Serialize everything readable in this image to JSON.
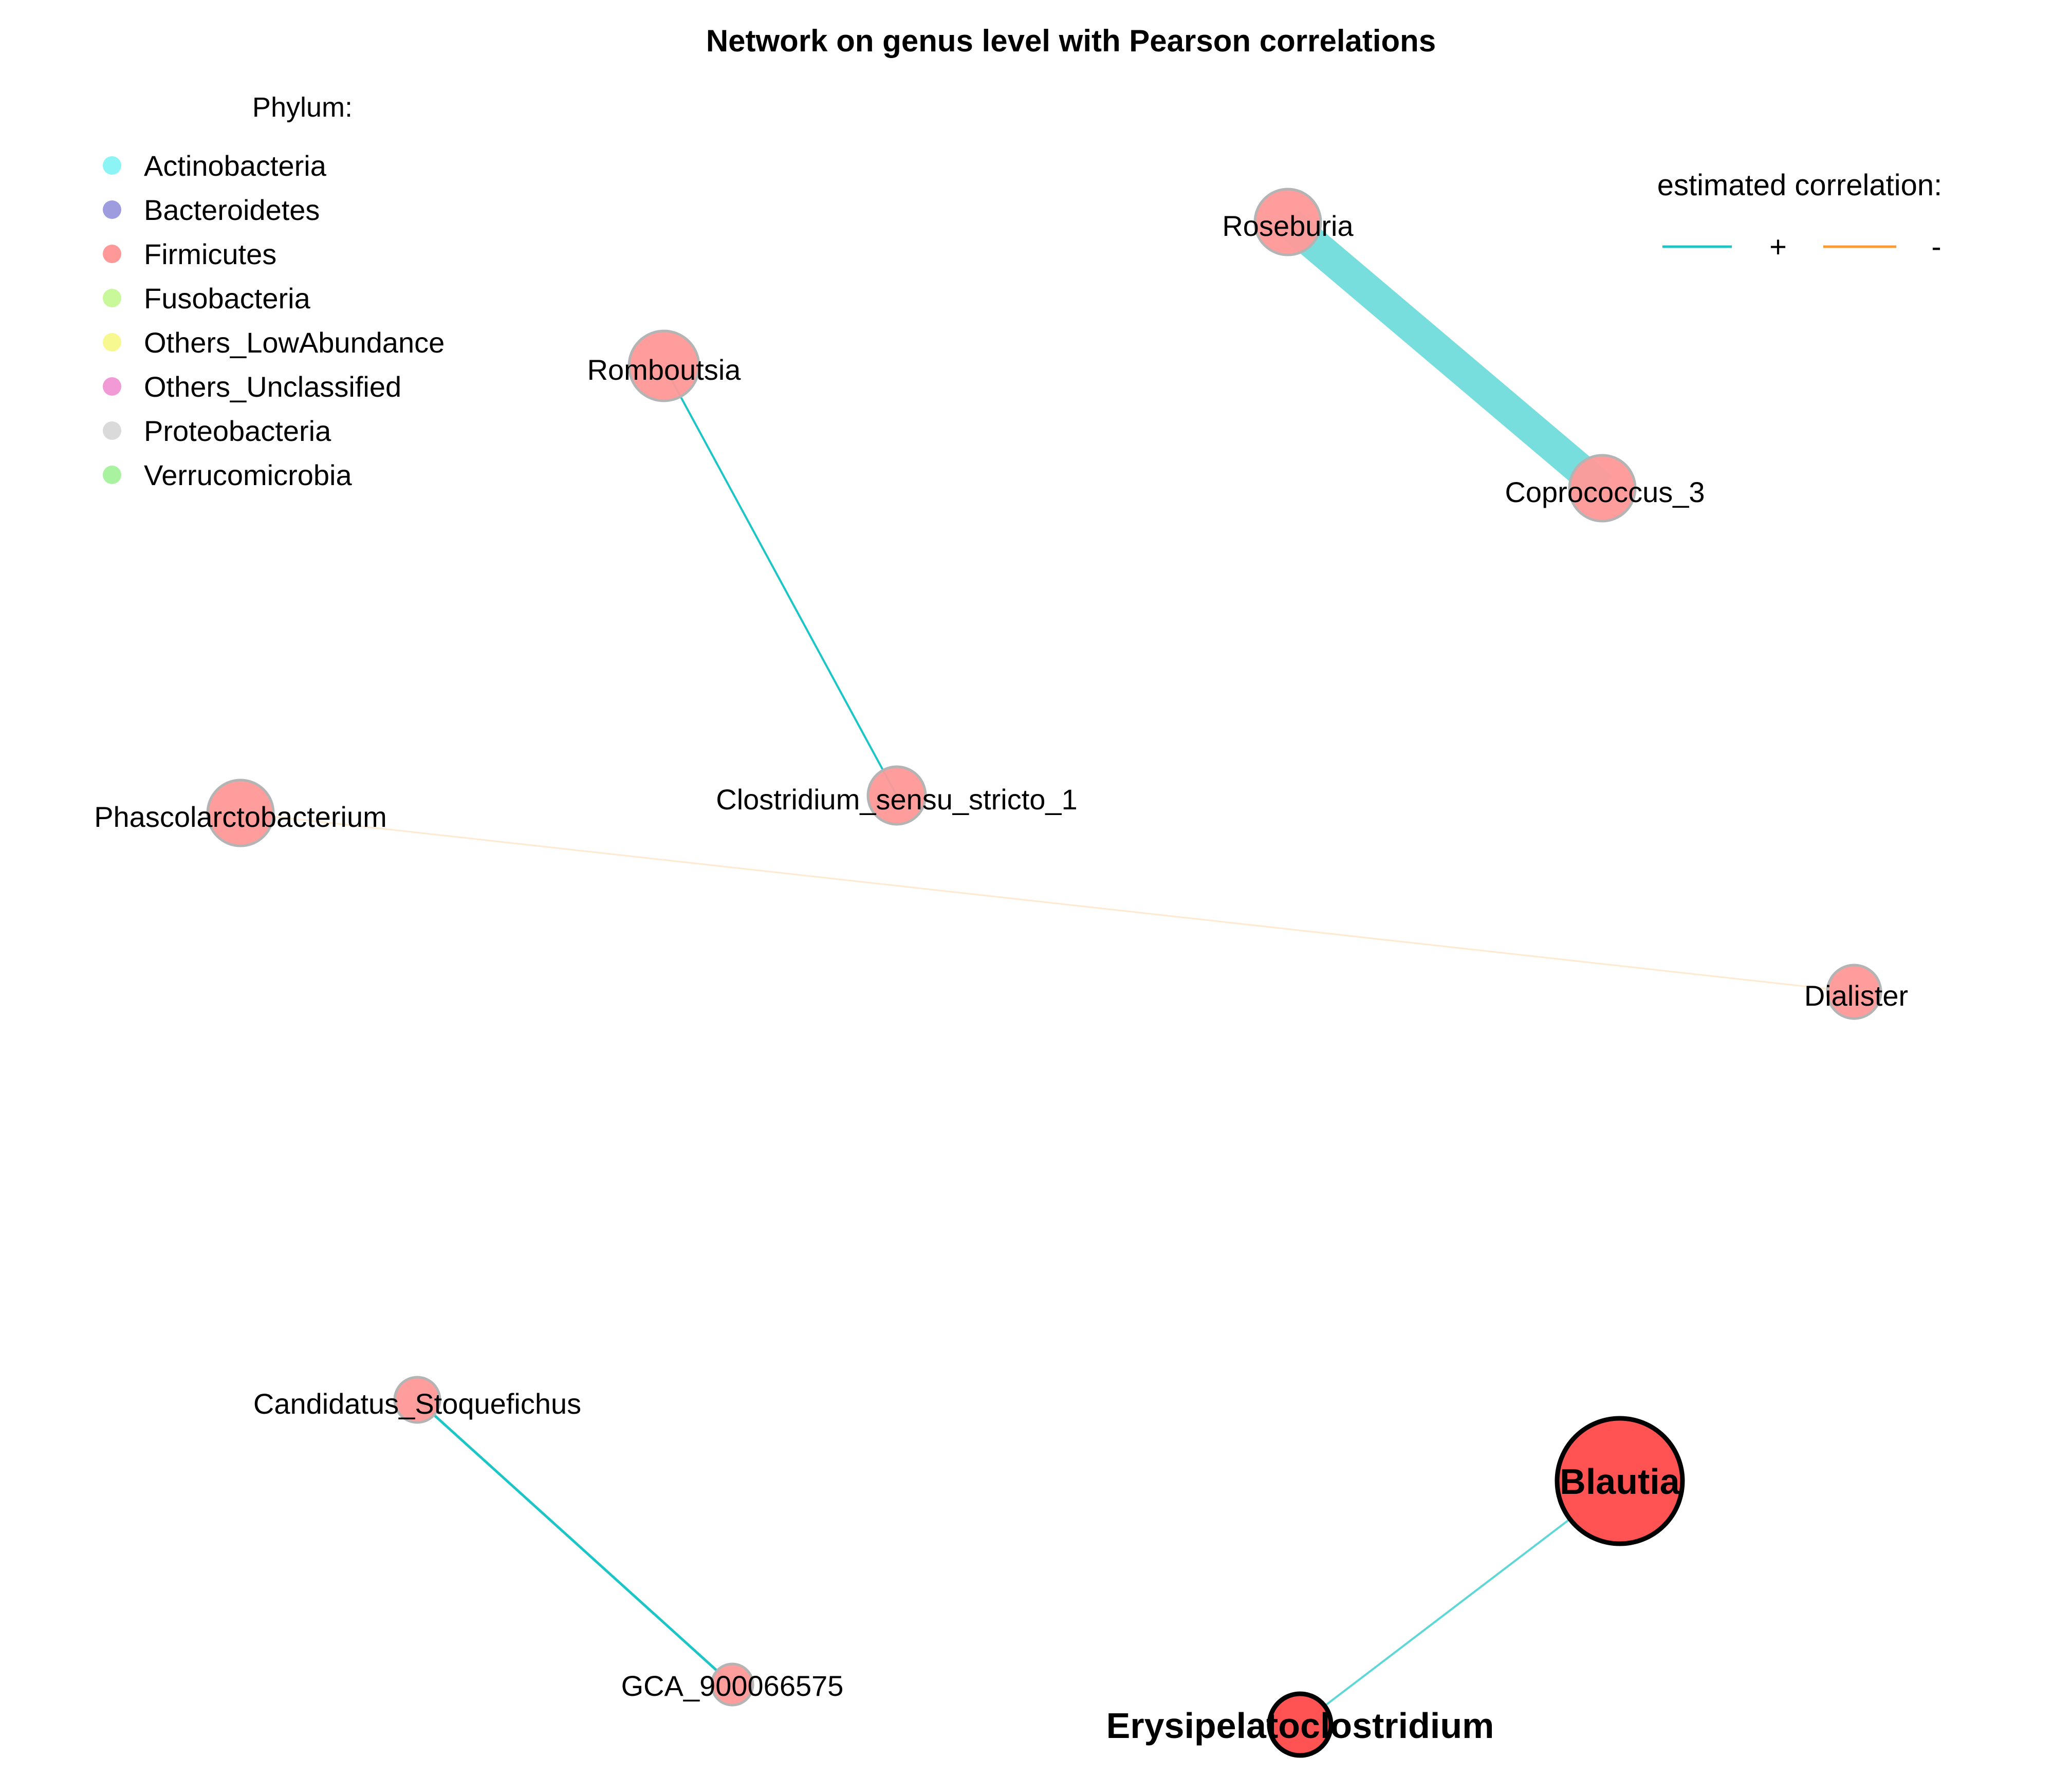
{
  "title": "Network on genus level with Pearson correlations",
  "phylum_legend": {
    "heading": "Phylum:",
    "items": [
      {
        "label": "Actinobacteria",
        "color": "#8CF4F4"
      },
      {
        "label": "Bacteroidetes",
        "color": "#9C9CDE"
      },
      {
        "label": "Firmicutes",
        "color": "#FF9898"
      },
      {
        "label": "Fusobacteria",
        "color": "#C8F89A"
      },
      {
        "label": "Others_LowAbundance",
        "color": "#F8F890"
      },
      {
        "label": "Others_Unclassified",
        "color": "#F29AD6"
      },
      {
        "label": "Proteobacteria",
        "color": "#DADADA"
      },
      {
        "label": "Verrucomicrobia",
        "color": "#A8F2A0"
      }
    ]
  },
  "correlation_legend": {
    "heading": "estimated correlation:",
    "positive": {
      "label": "+",
      "color": "#1CC6C6"
    },
    "negative": {
      "label": "-",
      "color": "#FF9A2E"
    }
  },
  "network": {
    "nodes": [
      {
        "id": "Roseburia",
        "label": "Roseburia",
        "phylum": "Firmicutes",
        "hub": false
      },
      {
        "id": "Coprococcus_3",
        "label": "Coprococcus_3",
        "phylum": "Firmicutes",
        "hub": false
      },
      {
        "id": "Romboutsia",
        "label": "Romboutsia",
        "phylum": "Firmicutes",
        "hub": false
      },
      {
        "id": "Clostridium_sensu_stricto_1",
        "label": "Clostridium_sensu_stricto_1",
        "phylum": "Firmicutes",
        "hub": false
      },
      {
        "id": "Phascolarctobacterium",
        "label": "Phascolarctobacterium",
        "phylum": "Firmicutes",
        "hub": false
      },
      {
        "id": "Dialister",
        "label": "Dialister",
        "phylum": "Firmicutes",
        "hub": false
      },
      {
        "id": "Candidatus_Stoquefichus",
        "label": "Candidatus_Stoquefichus",
        "phylum": "Firmicutes",
        "hub": false
      },
      {
        "id": "GCA_900066575",
        "label": "GCA_900066575",
        "phylum": "Firmicutes",
        "hub": false
      },
      {
        "id": "Blautia",
        "label": "Blautia",
        "phylum": "Firmicutes",
        "hub": true
      },
      {
        "id": "Erysipelatoclostridium",
        "label": "Erysipelatoclostridium",
        "phylum": "Firmicutes",
        "hub": true
      }
    ],
    "edges": [
      {
        "source": "Roseburia",
        "target": "Coprococcus_3",
        "sign": "+"
      },
      {
        "source": "Romboutsia",
        "target": "Clostridium_sensu_stricto_1",
        "sign": "+"
      },
      {
        "source": "Phascolarctobacterium",
        "target": "Dialister",
        "sign": "-"
      },
      {
        "source": "Candidatus_Stoquefichus",
        "target": "GCA_900066575",
        "sign": "+"
      },
      {
        "source": "Blautia",
        "target": "Erysipelatoclostridium",
        "sign": "+"
      }
    ]
  }
}
